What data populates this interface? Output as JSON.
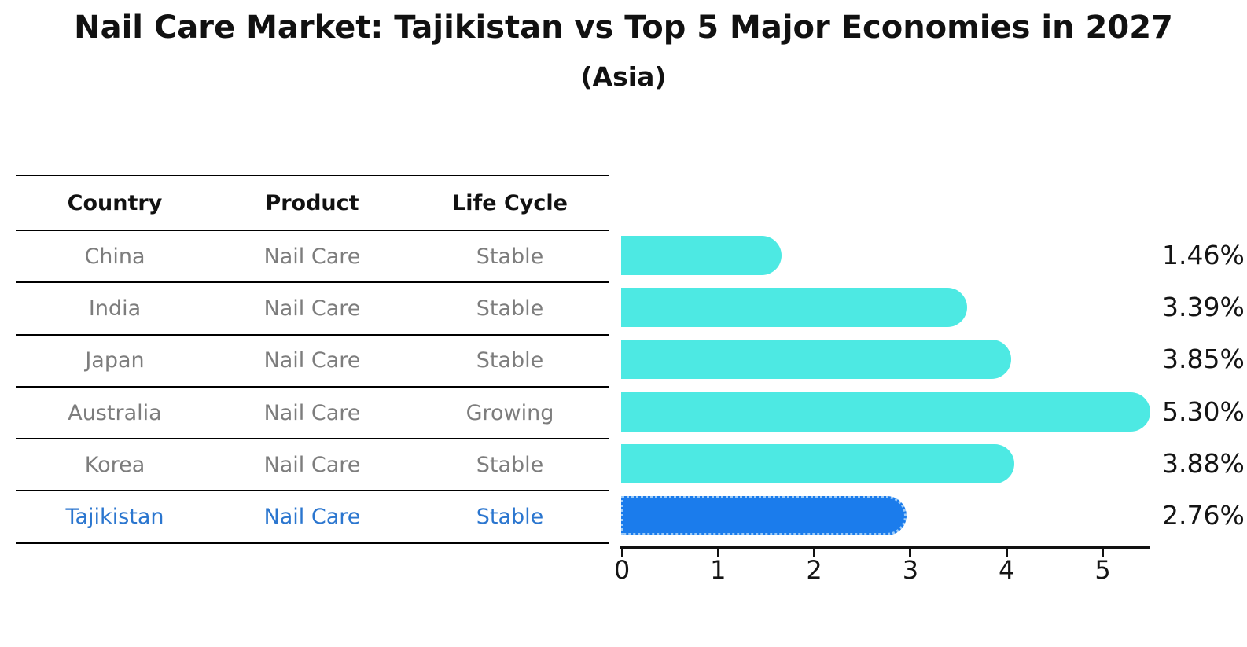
{
  "header": {
    "title": "Nail Care Market: Tajikistan vs Top 5 Major Economies in 2027",
    "subtitle": "(Asia)"
  },
  "table": {
    "headers": [
      "Country",
      "Product",
      "Life Cycle"
    ],
    "rows": [
      [
        "China",
        "Nail Care",
        "Stable"
      ],
      [
        "India",
        "Nail Care",
        "Stable"
      ],
      [
        "Japan",
        "Nail Care",
        "Stable"
      ],
      [
        "Australia",
        "Nail Care",
        "Growing"
      ],
      [
        "Korea",
        "Nail Care",
        "Stable"
      ],
      [
        "Tajikistan",
        "Nail Care",
        "Stable"
      ]
    ]
  },
  "chart_data": {
    "type": "bar",
    "orientation": "horizontal",
    "title": "Nail Care Market: Tajikistan vs Top 5 Major Economies in 2027",
    "subtitle": "(Asia)",
    "categories": [
      "China",
      "India",
      "Japan",
      "Australia",
      "Korea",
      "Tajikistan"
    ],
    "values": [
      1.46,
      3.39,
      3.85,
      5.3,
      3.88,
      2.76
    ],
    "value_labels": [
      "1.46%",
      "3.39%",
      "3.85%",
      "5.30%",
      "3.88%",
      "2.76%"
    ],
    "xticks": [
      "0",
      "1",
      "2",
      "3",
      "4",
      "5"
    ],
    "xlim": [
      0,
      5.5
    ],
    "xlabel": "",
    "ylabel": "",
    "grid": false,
    "legend": false,
    "highlight_index": 5
  },
  "colors": {
    "bar_default": "#4DE9E3",
    "bar_highlight": "#1B7CEC",
    "highlight_border": "#9CCBF8",
    "row_text": "#7d7d7d",
    "row_highlight_text": "#2B76CF",
    "axis": "#111111",
    "title_text": "#111111"
  }
}
